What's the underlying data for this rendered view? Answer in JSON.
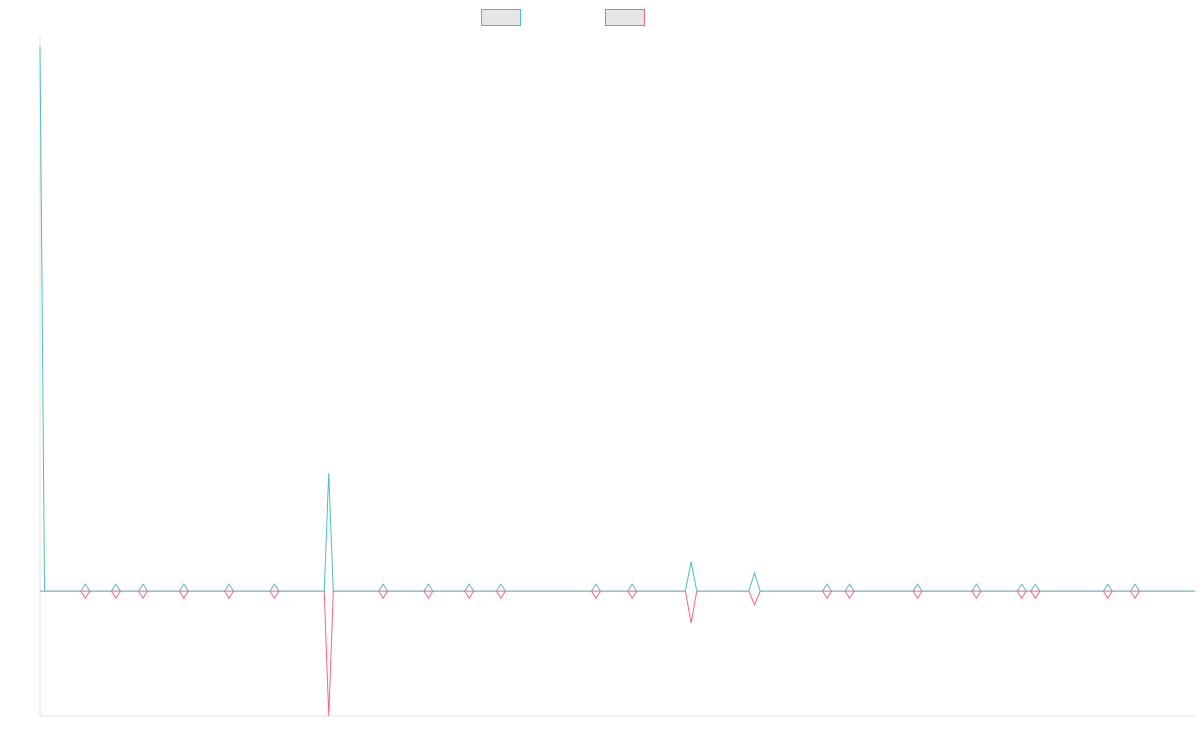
{
  "chart_data": {
    "type": "line",
    "title": "",
    "xlabel": "",
    "ylabel": "",
    "grid": false,
    "legend_position": "top-center",
    "colors": {
      "series_a": "#4bc0c0",
      "series_b": "#ff6384",
      "legend_fill": "#e6e6e6",
      "axis": "#e0e0e0"
    },
    "ylim": [
      -0.55,
      2.45
    ],
    "series": [
      {
        "name": "",
        "color": "#4bc0c0",
        "points": [
          [
            0,
            2.4
          ],
          [
            4,
            0
          ],
          [
            40,
            0
          ],
          [
            67,
            0
          ],
          [
            91,
            0
          ],
          [
            127,
            0
          ],
          [
            167,
            0
          ],
          [
            207,
            0
          ],
          [
            251,
            0
          ],
          [
            255,
            0.52
          ],
          [
            259,
            0
          ],
          [
            303,
            0
          ],
          [
            343,
            0
          ],
          [
            379,
            0
          ],
          [
            407,
            0
          ],
          [
            491,
            0
          ],
          [
            523,
            0
          ],
          [
            570,
            0
          ],
          [
            575,
            0.13
          ],
          [
            580,
            0
          ],
          [
            626,
            0
          ],
          [
            631,
            0.08
          ],
          [
            636,
            0
          ],
          [
            695,
            0
          ],
          [
            715,
            0
          ],
          [
            775,
            0
          ],
          [
            827,
            0
          ],
          [
            867,
            0
          ],
          [
            879,
            0
          ],
          [
            943,
            0
          ],
          [
            967,
            0
          ],
          [
            1020,
            0
          ]
        ]
      },
      {
        "name": "",
        "color": "#ff6384",
        "points": [
          [
            0,
            0
          ],
          [
            40,
            0
          ],
          [
            67,
            0
          ],
          [
            91,
            0
          ],
          [
            127,
            0
          ],
          [
            167,
            0
          ],
          [
            207,
            0
          ],
          [
            251,
            0
          ],
          [
            255,
            -0.55
          ],
          [
            259,
            0
          ],
          [
            303,
            0
          ],
          [
            343,
            0
          ],
          [
            379,
            0
          ],
          [
            407,
            0
          ],
          [
            491,
            0
          ],
          [
            523,
            0
          ],
          [
            570,
            0
          ],
          [
            575,
            -0.14
          ],
          [
            580,
            0
          ],
          [
            626,
            0
          ],
          [
            631,
            -0.06
          ],
          [
            636,
            0
          ],
          [
            695,
            0
          ],
          [
            715,
            0
          ],
          [
            775,
            0
          ],
          [
            827,
            0
          ],
          [
            867,
            0
          ],
          [
            879,
            0
          ],
          [
            943,
            0
          ],
          [
            967,
            0
          ],
          [
            1020,
            0
          ]
        ]
      }
    ],
    "marker_x": [
      40,
      67,
      91,
      127,
      167,
      207,
      303,
      343,
      379,
      407,
      491,
      523,
      695,
      715,
      775,
      827,
      867,
      879,
      943,
      967
    ],
    "xlim": [
      0,
      1020
    ]
  }
}
